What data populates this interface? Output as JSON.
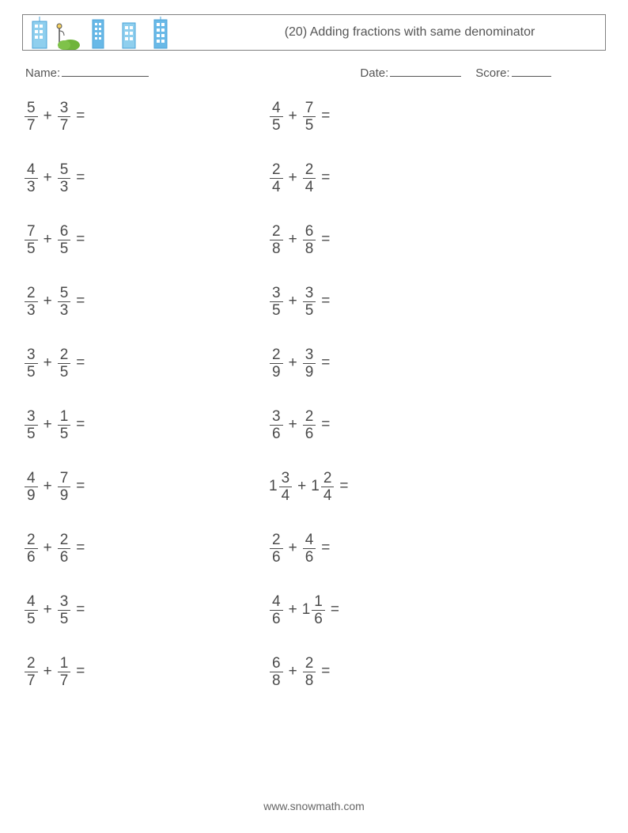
{
  "colors": {
    "text": "#4a4a4a",
    "border": "#808080",
    "sky": "#69b9e7",
    "building_light": "#8fcfee",
    "building_dark": "#4aa3d8",
    "grass": "#6fb43a",
    "tree_trunk": "#8b5a2b",
    "lamp": "#555555",
    "background": "#ffffff"
  },
  "typography": {
    "title_fontsize": 16,
    "body_fontsize": 15,
    "problem_fontsize": 19,
    "footer_fontsize": 14,
    "font_family": "Segoe UI, Helvetica Neue, Arial, sans-serif"
  },
  "header": {
    "title": "(20) Adding fractions with same denominator"
  },
  "meta": {
    "name_label": "Name:",
    "date_label": "Date:",
    "score_label": "Score:"
  },
  "operator": "+",
  "equals": "=",
  "columns": [
    [
      {
        "a": {
          "n": "5",
          "d": "7"
        },
        "b": {
          "n": "3",
          "d": "7"
        }
      },
      {
        "a": {
          "n": "4",
          "d": "3"
        },
        "b": {
          "n": "5",
          "d": "3"
        }
      },
      {
        "a": {
          "n": "7",
          "d": "5"
        },
        "b": {
          "n": "6",
          "d": "5"
        }
      },
      {
        "a": {
          "n": "2",
          "d": "3"
        },
        "b": {
          "n": "5",
          "d": "3"
        }
      },
      {
        "a": {
          "n": "3",
          "d": "5"
        },
        "b": {
          "n": "2",
          "d": "5"
        }
      },
      {
        "a": {
          "n": "3",
          "d": "5"
        },
        "b": {
          "n": "1",
          "d": "5"
        }
      },
      {
        "a": {
          "n": "4",
          "d": "9"
        },
        "b": {
          "n": "7",
          "d": "9"
        }
      },
      {
        "a": {
          "n": "2",
          "d": "6"
        },
        "b": {
          "n": "2",
          "d": "6"
        }
      },
      {
        "a": {
          "n": "4",
          "d": "5"
        },
        "b": {
          "n": "3",
          "d": "5"
        }
      },
      {
        "a": {
          "n": "2",
          "d": "7"
        },
        "b": {
          "n": "1",
          "d": "7"
        }
      }
    ],
    [
      {
        "a": {
          "n": "4",
          "d": "5"
        },
        "b": {
          "n": "7",
          "d": "5"
        }
      },
      {
        "a": {
          "n": "2",
          "d": "4"
        },
        "b": {
          "n": "2",
          "d": "4"
        }
      },
      {
        "a": {
          "n": "2",
          "d": "8"
        },
        "b": {
          "n": "6",
          "d": "8"
        }
      },
      {
        "a": {
          "n": "3",
          "d": "5"
        },
        "b": {
          "n": "3",
          "d": "5"
        }
      },
      {
        "a": {
          "n": "2",
          "d": "9"
        },
        "b": {
          "n": "3",
          "d": "9"
        }
      },
      {
        "a": {
          "n": "3",
          "d": "6"
        },
        "b": {
          "n": "2",
          "d": "6"
        }
      },
      {
        "a": {
          "w": "1",
          "n": "3",
          "d": "4"
        },
        "b": {
          "w": "1",
          "n": "2",
          "d": "4"
        }
      },
      {
        "a": {
          "n": "2",
          "d": "6"
        },
        "b": {
          "n": "4",
          "d": "6"
        }
      },
      {
        "a": {
          "n": "4",
          "d": "6"
        },
        "b": {
          "w": "1",
          "n": "1",
          "d": "6"
        }
      },
      {
        "a": {
          "n": "6",
          "d": "8"
        },
        "b": {
          "n": "2",
          "d": "8"
        }
      }
    ]
  ],
  "footer": {
    "url": "www.snowmath.com"
  }
}
